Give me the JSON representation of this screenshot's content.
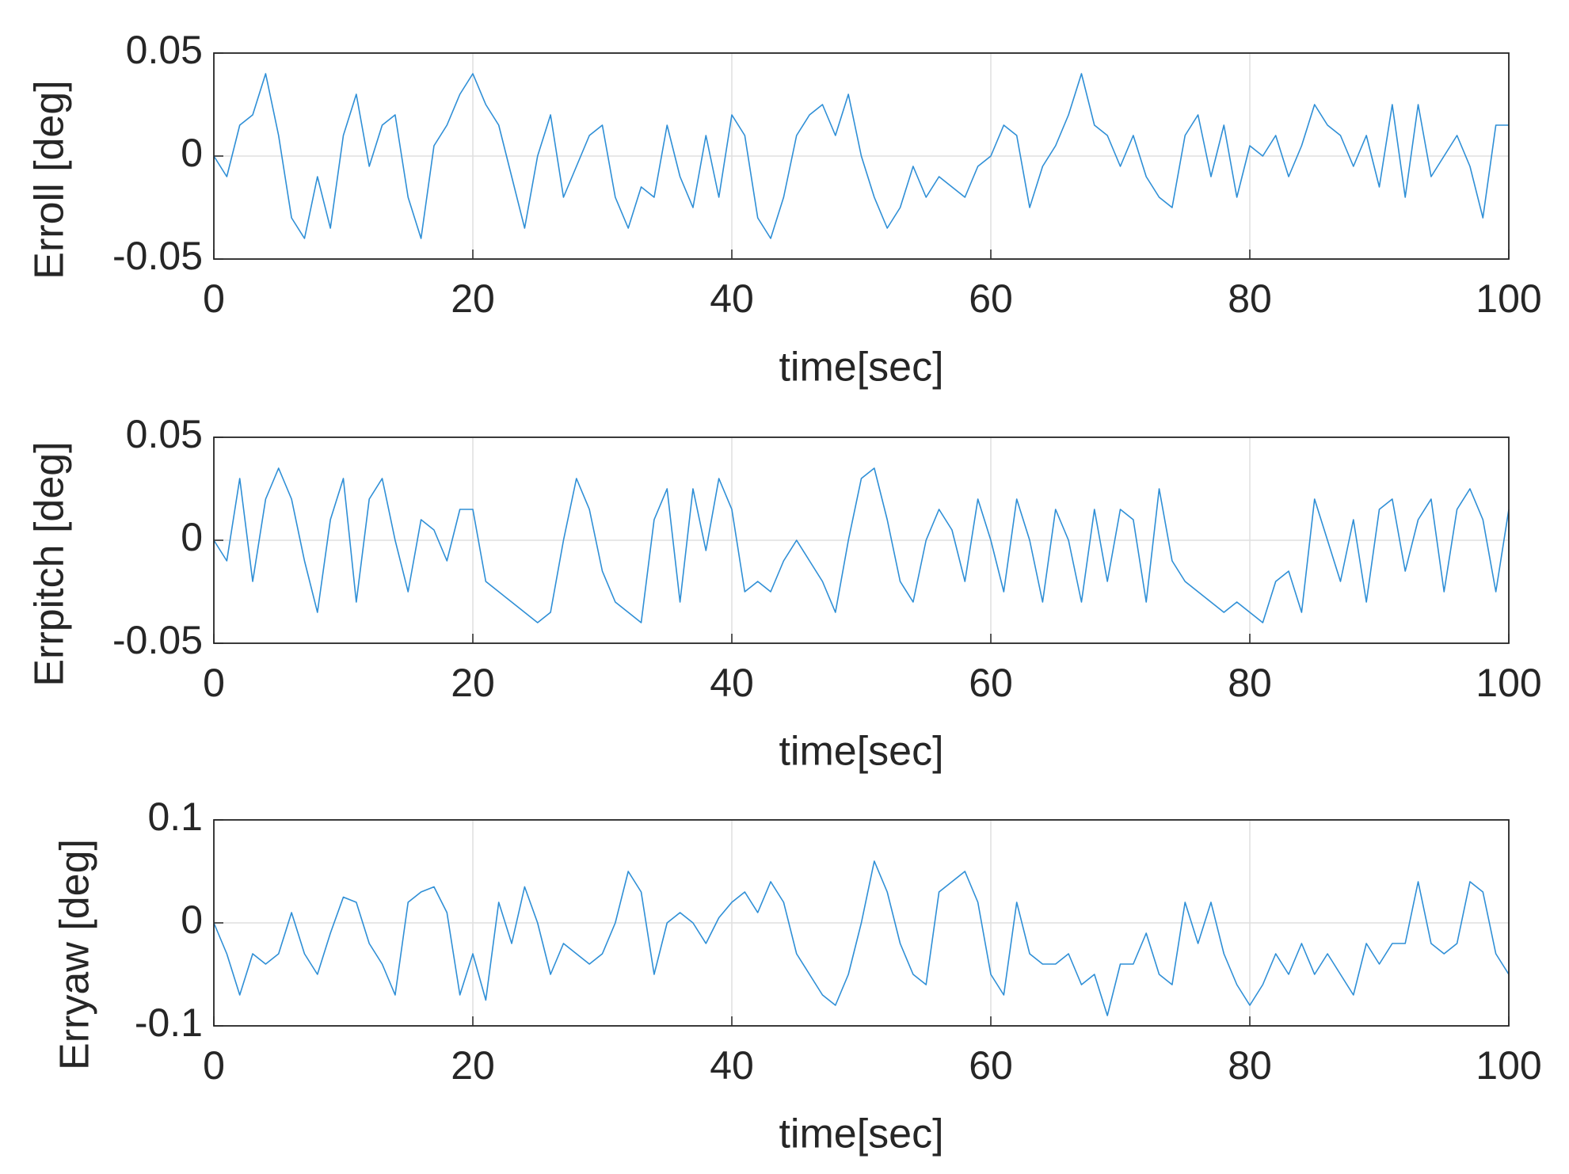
{
  "chart_data": [
    {
      "type": "line",
      "ylabel": "Erroll [deg]",
      "xlabel": "time[sec]",
      "color": "#2f8fd6",
      "grid": true,
      "xlim": [
        0,
        100
      ],
      "xticks": [
        0,
        20,
        40,
        60,
        80,
        100
      ],
      "ylim": [
        -0.05,
        0.05
      ],
      "yticks": [
        -0.05,
        0,
        0.05
      ],
      "x": [
        0,
        1,
        2,
        3,
        4,
        5,
        6,
        7,
        8,
        9,
        10,
        11,
        12,
        13,
        14,
        15,
        16,
        17,
        18,
        19,
        20,
        21,
        22,
        23,
        24,
        25,
        26,
        27,
        28,
        29,
        30,
        31,
        32,
        33,
        34,
        35,
        36,
        37,
        38,
        39,
        40,
        41,
        42,
        43,
        44,
        45,
        46,
        47,
        48,
        49,
        50,
        51,
        52,
        53,
        54,
        55,
        56,
        57,
        58,
        59,
        60,
        61,
        62,
        63,
        64,
        65,
        66,
        67,
        68,
        69,
        70,
        71,
        72,
        73,
        74,
        75,
        76,
        77,
        78,
        79,
        80,
        81,
        82,
        83,
        84,
        85,
        86,
        87,
        88,
        89,
        90,
        91,
        92,
        93,
        94,
        95,
        96,
        97,
        98,
        99,
        100
      ],
      "values": [
        0,
        -0.01,
        0.015,
        0.02,
        0.04,
        0.01,
        -0.03,
        -0.04,
        -0.01,
        -0.035,
        0.01,
        0.03,
        -0.005,
        0.015,
        0.02,
        -0.02,
        -0.04,
        0.005,
        0.015,
        0.03,
        0.04,
        0.025,
        0.015,
        -0.01,
        -0.035,
        0,
        0.02,
        -0.02,
        -0.005,
        0.01,
        0.015,
        -0.02,
        -0.035,
        -0.015,
        -0.02,
        0.015,
        -0.01,
        -0.025,
        0.01,
        -0.02,
        0.02,
        0.01,
        -0.03,
        -0.04,
        -0.02,
        0.01,
        0.02,
        0.025,
        0.01,
        0.03,
        0,
        -0.02,
        -0.035,
        -0.025,
        -0.005,
        -0.02,
        -0.01,
        -0.015,
        -0.02,
        -0.005,
        0,
        0.015,
        0.01,
        -0.025,
        -0.005,
        0.005,
        0.02,
        0.04,
        0.015,
        0.01,
        -0.005,
        0.01,
        -0.01,
        -0.02,
        -0.025,
        0.01,
        0.02,
        -0.01,
        0.015,
        -0.02,
        0.005,
        0,
        0.01,
        -0.01,
        0.005,
        0.025,
        0.015,
        0.01,
        -0.005,
        0.01,
        -0.015,
        0.025,
        -0.02,
        0.025,
        -0.01,
        0,
        0.01,
        -0.005,
        -0.03,
        0.015,
        0.015
      ]
    },
    {
      "type": "line",
      "ylabel": "Errpitch [deg]",
      "xlabel": "time[sec]",
      "color": "#2f8fd6",
      "grid": true,
      "xlim": [
        0,
        100
      ],
      "xticks": [
        0,
        20,
        40,
        60,
        80,
        100
      ],
      "ylim": [
        -0.05,
        0.05
      ],
      "yticks": [
        -0.05,
        0,
        0.05
      ],
      "x": [
        0,
        1,
        2,
        3,
        4,
        5,
        6,
        7,
        8,
        9,
        10,
        11,
        12,
        13,
        14,
        15,
        16,
        17,
        18,
        19,
        20,
        21,
        22,
        23,
        24,
        25,
        26,
        27,
        28,
        29,
        30,
        31,
        32,
        33,
        34,
        35,
        36,
        37,
        38,
        39,
        40,
        41,
        42,
        43,
        44,
        45,
        46,
        47,
        48,
        49,
        50,
        51,
        52,
        53,
        54,
        55,
        56,
        57,
        58,
        59,
        60,
        61,
        62,
        63,
        64,
        65,
        66,
        67,
        68,
        69,
        70,
        71,
        72,
        73,
        74,
        75,
        76,
        77,
        78,
        79,
        80,
        81,
        82,
        83,
        84,
        85,
        86,
        87,
        88,
        89,
        90,
        91,
        92,
        93,
        94,
        95,
        96,
        97,
        98,
        99,
        100
      ],
      "values": [
        0,
        -0.01,
        0.03,
        -0.02,
        0.02,
        0.035,
        0.02,
        -0.01,
        -0.035,
        0.01,
        0.03,
        -0.03,
        0.02,
        0.03,
        0,
        -0.025,
        0.01,
        0.005,
        -0.01,
        0.015,
        0.015,
        -0.02,
        -0.025,
        -0.03,
        -0.035,
        -0.04,
        -0.035,
        0,
        0.03,
        0.015,
        -0.015,
        -0.03,
        -0.035,
        -0.04,
        0.01,
        0.025,
        -0.03,
        0.025,
        -0.005,
        0.03,
        0.015,
        -0.025,
        -0.02,
        -0.025,
        -0.01,
        0,
        -0.01,
        -0.02,
        -0.035,
        0,
        0.03,
        0.035,
        0.01,
        -0.02,
        -0.03,
        0,
        0.015,
        0.005,
        -0.02,
        0.02,
        0,
        -0.025,
        0.02,
        0,
        -0.03,
        0.015,
        0,
        -0.03,
        0.015,
        -0.02,
        0.015,
        0.01,
        -0.03,
        0.025,
        -0.01,
        -0.02,
        -0.025,
        -0.03,
        -0.035,
        -0.03,
        -0.035,
        -0.04,
        -0.02,
        -0.015,
        -0.035,
        0.02,
        0,
        -0.02,
        0.01,
        -0.03,
        0.015,
        0.02,
        -0.015,
        0.01,
        0.02,
        -0.025,
        0.015,
        0.025,
        0.01,
        -0.025,
        0.015
      ]
    },
    {
      "type": "line",
      "ylabel": "Erryaw [deg]",
      "xlabel": "time[sec]",
      "color": "#2f8fd6",
      "grid": true,
      "xlim": [
        0,
        100
      ],
      "xticks": [
        0,
        20,
        40,
        60,
        80,
        100
      ],
      "ylim": [
        -0.1,
        0.1
      ],
      "yticks": [
        -0.1,
        0,
        0.1
      ],
      "x": [
        0,
        1,
        2,
        3,
        4,
        5,
        6,
        7,
        8,
        9,
        10,
        11,
        12,
        13,
        14,
        15,
        16,
        17,
        18,
        19,
        20,
        21,
        22,
        23,
        24,
        25,
        26,
        27,
        28,
        29,
        30,
        31,
        32,
        33,
        34,
        35,
        36,
        37,
        38,
        39,
        40,
        41,
        42,
        43,
        44,
        45,
        46,
        47,
        48,
        49,
        50,
        51,
        52,
        53,
        54,
        55,
        56,
        57,
        58,
        59,
        60,
        61,
        62,
        63,
        64,
        65,
        66,
        67,
        68,
        69,
        70,
        71,
        72,
        73,
        74,
        75,
        76,
        77,
        78,
        79,
        80,
        81,
        82,
        83,
        84,
        85,
        86,
        87,
        88,
        89,
        90,
        91,
        92,
        93,
        94,
        95,
        96,
        97,
        98,
        99,
        100
      ],
      "values": [
        0,
        -0.03,
        -0.07,
        -0.03,
        -0.04,
        -0.03,
        0.01,
        -0.03,
        -0.05,
        -0.01,
        0.025,
        0.02,
        -0.02,
        -0.04,
        -0.07,
        0.02,
        0.03,
        0.035,
        0.01,
        -0.07,
        -0.03,
        -0.075,
        0.02,
        -0.02,
        0.035,
        0,
        -0.05,
        -0.02,
        -0.03,
        -0.04,
        -0.03,
        0,
        0.05,
        0.03,
        -0.05,
        0,
        0.01,
        0,
        -0.02,
        0.005,
        0.02,
        0.03,
        0.01,
        0.04,
        0.02,
        -0.03,
        -0.05,
        -0.07,
        -0.08,
        -0.05,
        0,
        0.06,
        0.03,
        -0.02,
        -0.05,
        -0.06,
        0.03,
        0.04,
        0.05,
        0.02,
        -0.05,
        -0.07,
        0.02,
        -0.03,
        -0.04,
        -0.04,
        -0.03,
        -0.06,
        -0.05,
        -0.09,
        -0.04,
        -0.04,
        -0.01,
        -0.05,
        -0.06,
        0.02,
        -0.02,
        0.02,
        -0.03,
        -0.06,
        -0.08,
        -0.06,
        -0.03,
        -0.05,
        -0.02,
        -0.05,
        -0.03,
        -0.05,
        -0.07,
        -0.02,
        -0.04,
        -0.02,
        -0.02,
        0.04,
        -0.02,
        -0.03,
        -0.02,
        0.04,
        0.03,
        -0.03,
        -0.05
      ]
    }
  ]
}
